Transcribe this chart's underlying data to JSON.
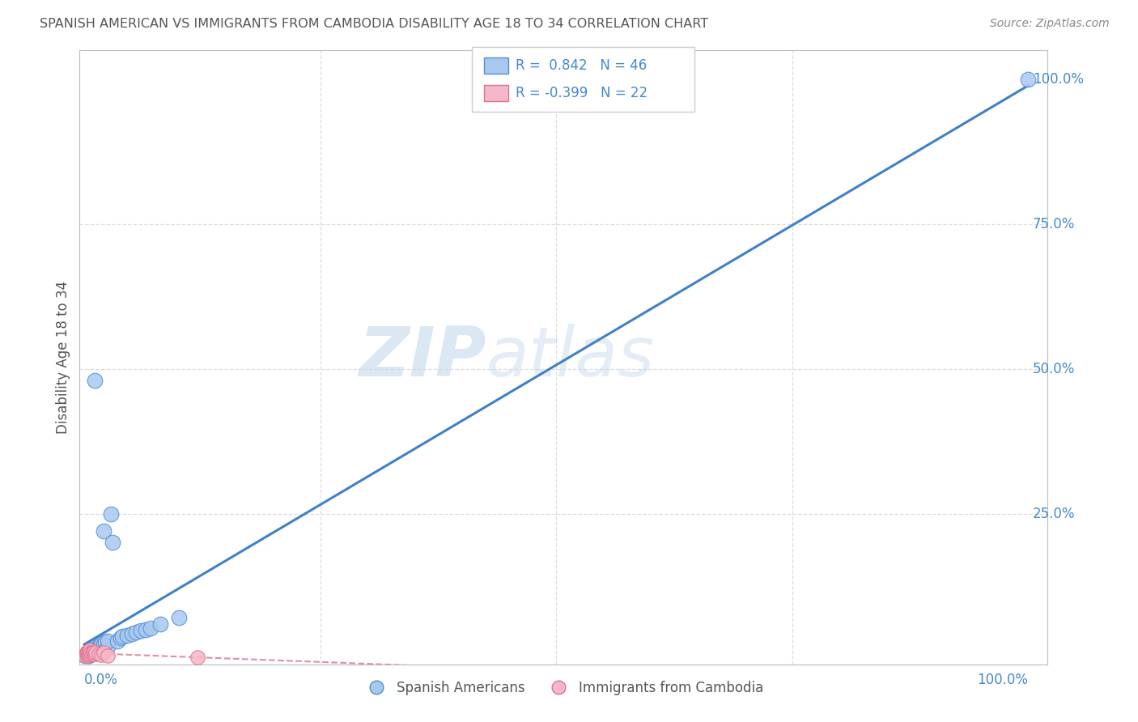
{
  "title": "SPANISH AMERICAN VS IMMIGRANTS FROM CAMBODIA DISABILITY AGE 18 TO 34 CORRELATION CHART",
  "source": "Source: ZipAtlas.com",
  "ylabel": "Disability Age 18 to 34",
  "watermark_zip": "ZIP",
  "watermark_atlas": "atlas",
  "legend_blue_label": "Spanish Americans",
  "legend_pink_label": "Immigrants from Cambodia",
  "R_blue": 0.842,
  "N_blue": 46,
  "R_pink": -0.399,
  "N_pink": 22,
  "blue_fill": "#A8C8F0",
  "pink_fill": "#F5B8C8",
  "blue_edge": "#5090D0",
  "pink_edge": "#E07090",
  "blue_line": "#4080C8",
  "pink_line": "#D06080",
  "title_color": "#555555",
  "axis_color": "#4488CC",
  "source_color": "#888888",
  "grid_color": "#DDDDDD",
  "bg_color": "#FFFFFF",
  "blue_x": [
    0.001,
    0.002,
    0.002,
    0.003,
    0.003,
    0.003,
    0.004,
    0.004,
    0.005,
    0.005,
    0.005,
    0.006,
    0.006,
    0.007,
    0.007,
    0.008,
    0.008,
    0.009,
    0.01,
    0.01,
    0.011,
    0.012,
    0.013,
    0.014,
    0.015,
    0.016,
    0.018,
    0.02,
    0.02,
    0.022,
    0.025,
    0.025,
    0.028,
    0.03,
    0.035,
    0.038,
    0.04,
    0.045,
    0.05,
    0.055,
    0.06,
    0.065,
    0.07,
    0.08,
    0.1,
    1.0
  ],
  "blue_y": [
    0.005,
    0.006,
    0.008,
    0.005,
    0.007,
    0.009,
    0.006,
    0.01,
    0.005,
    0.008,
    0.012,
    0.007,
    0.01,
    0.008,
    0.012,
    0.01,
    0.015,
    0.012,
    0.01,
    0.015,
    0.48,
    0.015,
    0.02,
    0.018,
    0.02,
    0.022,
    0.025,
    0.22,
    0.025,
    0.028,
    0.02,
    0.03,
    0.25,
    0.2,
    0.03,
    0.035,
    0.038,
    0.04,
    0.042,
    0.045,
    0.048,
    0.05,
    0.052,
    0.06,
    0.07,
    1.0
  ],
  "pink_x": [
    0.001,
    0.002,
    0.002,
    0.003,
    0.003,
    0.004,
    0.004,
    0.005,
    0.005,
    0.006,
    0.006,
    0.007,
    0.008,
    0.009,
    0.01,
    0.011,
    0.012,
    0.015,
    0.018,
    0.02,
    0.025,
    0.12
  ],
  "pink_y": [
    0.005,
    0.008,
    0.01,
    0.005,
    0.012,
    0.007,
    0.01,
    0.006,
    0.012,
    0.008,
    0.015,
    0.01,
    0.01,
    0.008,
    0.012,
    0.008,
    0.01,
    0.008,
    0.006,
    0.01,
    0.005,
    0.002
  ]
}
